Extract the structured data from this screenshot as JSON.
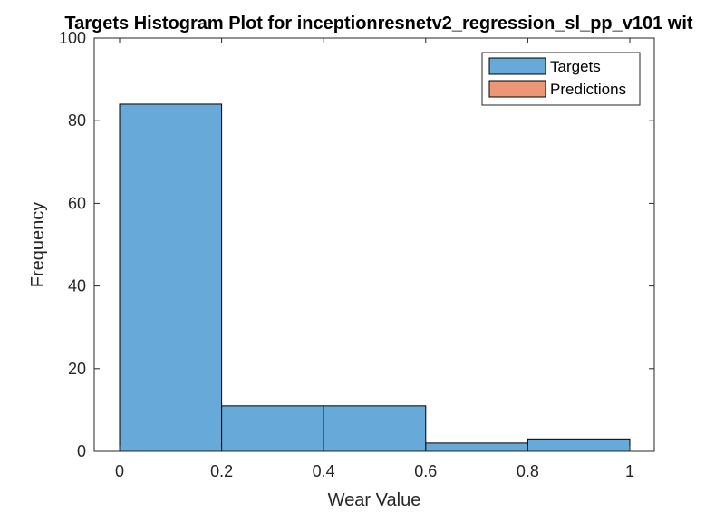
{
  "chart_data": {
    "type": "bar",
    "title": "Targets Histogram Plot for inceptionresnetv2_regression_sl_pp_v101 wit",
    "xlabel": "Wear Value",
    "ylabel": "Frequency",
    "xlim": [
      0,
      1
    ],
    "ylim": [
      0,
      100
    ],
    "x_ticks": [
      "0",
      "0.2",
      "0.4",
      "0.6",
      "0.8",
      "1"
    ],
    "y_ticks": [
      "0",
      "20",
      "40",
      "60",
      "80",
      "100"
    ],
    "grid": false,
    "legend_position": "top-right",
    "bin_edges": [
      0,
      0.2,
      0.4,
      0.6,
      0.8,
      1.0
    ],
    "series": [
      {
        "name": "Targets",
        "values": [
          84,
          11,
          11,
          2,
          3
        ],
        "color": "#67a9d8"
      },
      {
        "name": "Predictions",
        "values": [],
        "color": "#ec9675"
      }
    ]
  }
}
